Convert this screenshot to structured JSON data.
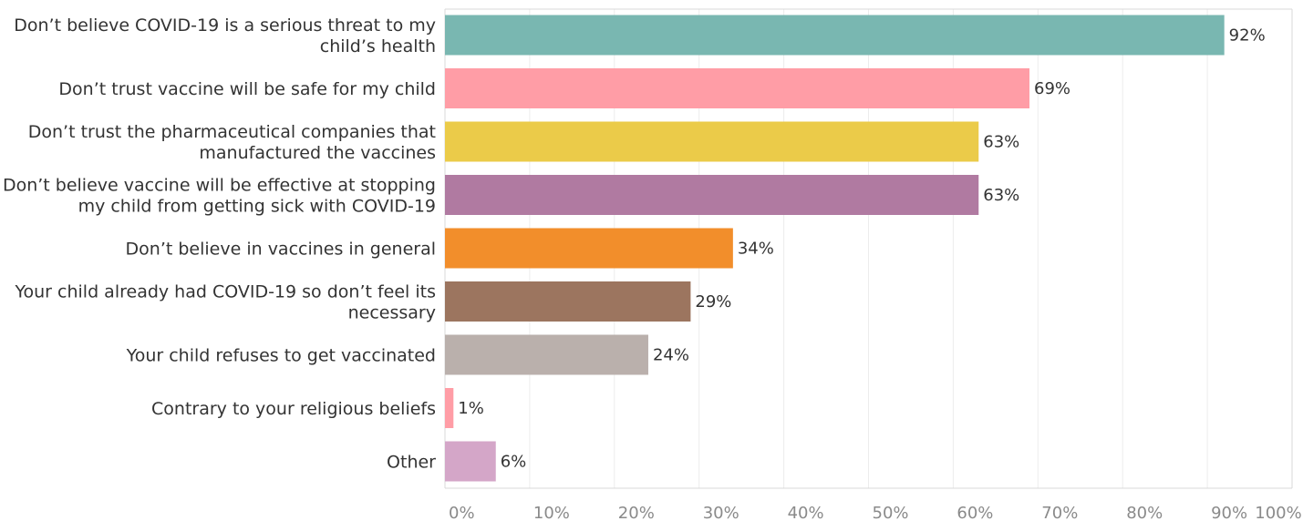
{
  "chart_data": {
    "type": "bar",
    "orientation": "horizontal",
    "title": "",
    "xlabel": "",
    "ylabel": "",
    "xlim": [
      0,
      100
    ],
    "grid": true,
    "categories": [
      [
        "Don’t believe COVID-19 is a serious threat to my",
        "child’s health"
      ],
      [
        "Don’t trust vaccine will be safe for my child"
      ],
      [
        "Don’t trust the pharmaceutical companies that",
        "manufactured the vaccines"
      ],
      [
        "Don’t believe vaccine will be effective at stopping",
        "my child from getting sick with COVID-19"
      ],
      [
        "Don’t believe in vaccines in general"
      ],
      [
        "Your child already had COVID-19 so don’t feel its",
        "necessary"
      ],
      [
        "Your child refuses to get vaccinated"
      ],
      [
        "Contrary to your religious beliefs"
      ],
      [
        "Other"
      ]
    ],
    "values": [
      92,
      69,
      63,
      63,
      34,
      29,
      24,
      1,
      6
    ],
    "value_labels": [
      "92%",
      "69%",
      "63%",
      "63%",
      "34%",
      "29%",
      "24%",
      "1%",
      "6%"
    ],
    "colors": [
      "#79b7b1",
      "#ff9da6",
      "#ebcb49",
      "#b07aa1",
      "#f28e2b",
      "#9c755f",
      "#bab0ac",
      "#ff9da6",
      "#d4a6c8"
    ],
    "x_ticks": [
      0,
      10,
      20,
      30,
      40,
      50,
      60,
      70,
      80,
      90,
      100
    ],
    "x_tick_labels": [
      "0%",
      "10%",
      "20%",
      "30%",
      "40%",
      "50%",
      "60%",
      "70%",
      "80%",
      "90%",
      "100%"
    ]
  }
}
